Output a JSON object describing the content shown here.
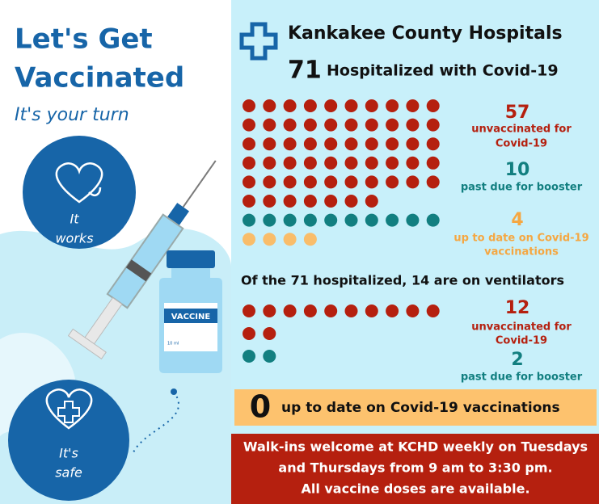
{
  "left": {
    "title_lines": [
      "Let's Get",
      "Vaccinated"
    ],
    "subtitle": "It's your turn",
    "badges": [
      [
        "It",
        "works"
      ],
      [
        "It's",
        "safe"
      ]
    ],
    "vial_label": "VACCINE",
    "vial_volume": "10 ml"
  },
  "right": {
    "heading": "Kankakee County Hospitals",
    "total": 71,
    "total_label": "Hospitalized with Covid-19",
    "groups": [
      {
        "count": 57,
        "label_lines": [
          "unvaccinated for",
          "Covid-19"
        ],
        "color": "#b5200f"
      },
      {
        "count": 10,
        "label_lines": [
          "past due for booster"
        ],
        "color": "#127f80"
      },
      {
        "count": 4,
        "label_lines": [
          "up to date on Covid-19",
          "vaccinations"
        ],
        "color": "#f9bd6a"
      }
    ],
    "ventilator_heading": "Of the 71 hospitalized, 14 are on ventilators",
    "ventilator_groups": [
      {
        "count": 12,
        "label_lines": [
          "unvaccinated for",
          "Covid-19"
        ],
        "color": "#b5200f"
      },
      {
        "count": 2,
        "label_lines": [
          "past due for booster"
        ],
        "color": "#127f80"
      }
    ],
    "zero": {
      "count": 0,
      "label": "up to date on Covid-19 vaccinations"
    },
    "footer_lines": [
      "Walk-ins welcome at KCHD weekly on Tuesdays",
      "and Thursdays from 9 am to 3:30 pm.",
      "All vaccine doses are available."
    ]
  }
}
